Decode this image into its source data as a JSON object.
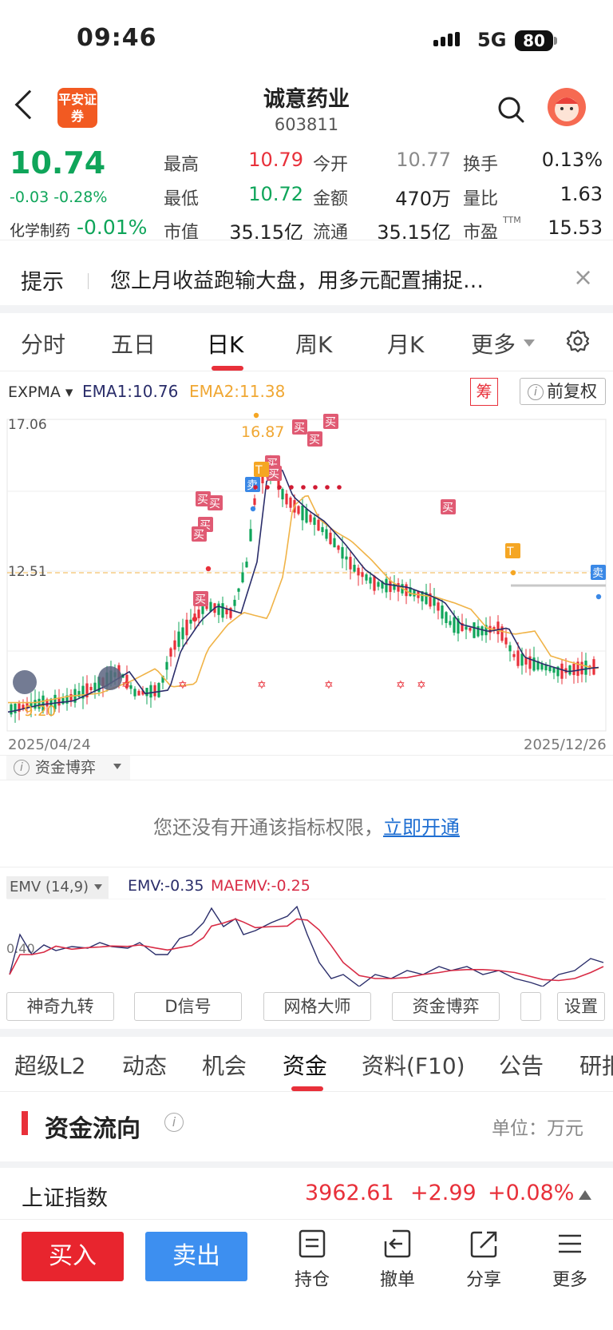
{
  "status_bar": {
    "time": "09:46",
    "network": "5G",
    "battery": "80"
  },
  "header": {
    "logo_text": "平安证券",
    "stock_name": "诚意药业",
    "stock_code": "603811"
  },
  "quote": {
    "price": "10.74",
    "change": "-0.03 -0.28%",
    "sector_name": "化学制药",
    "sector_change": "-0.01%",
    "fields": [
      {
        "label": "最高",
        "value": "10.79",
        "color": "#e8303a"
      },
      {
        "label": "今开",
        "value": "10.77",
        "color": "#8a8a8a"
      },
      {
        "label": "换手",
        "value": "0.13%",
        "color": "#222222"
      },
      {
        "label": "最低",
        "value": "10.72",
        "color": "#0fa55a"
      },
      {
        "label": "金额",
        "value": "470万",
        "color": "#222222"
      },
      {
        "label": "量比",
        "value": "1.63",
        "color": "#222222"
      },
      {
        "label": "市值",
        "value": "35.15亿",
        "color": "#222222"
      },
      {
        "label": "流通",
        "value": "35.15亿",
        "color": "#222222"
      },
      {
        "label": "市盈",
        "value": "15.53",
        "color": "#222222",
        "sup": "TTM"
      }
    ]
  },
  "tip": {
    "label": "提示",
    "text": "您上月收益跑输大盘，用多元配置捕捉…"
  },
  "period_tabs": [
    "分时",
    "五日",
    "日K",
    "周K",
    "月K",
    "更多"
  ],
  "period_active": "日K",
  "indicator": {
    "name": "EXPMA",
    "ema1": "EMA1:10.76",
    "ema2": "EMA2:11.38",
    "chip_badge": "筹",
    "adjust_label": "前复权"
  },
  "kline": {
    "price_high_label": "17.06",
    "mid_label": "12.51",
    "low_label": "9.20",
    "peak_label": "16.87",
    "start_date": "2025/04/24",
    "end_date": "2025/12/26",
    "colors": {
      "up": "#e8303a",
      "down": "#0fa55a",
      "ema1": "#2a2d6a",
      "ema2": "#f0b347"
    },
    "signal_buy": "买",
    "signal_sell": "卖",
    "signal_t": "T"
  },
  "fund_game": {
    "label": "资金博弈",
    "notice": "您还没有开通该指标权限，",
    "link": "立即开通"
  },
  "emv": {
    "label": "EMV (14,9)",
    "emv": "EMV:-0.35",
    "maemv": "MAEMV:-0.25",
    "axis_label": "0.40"
  },
  "tool_buttons": [
    "神奇九转",
    "D信号",
    "网格大师",
    "资金博弈",
    "设置"
  ],
  "section_tabs": [
    "超级L2",
    "动态",
    "机会",
    "资金",
    "资料(F10)",
    "公告",
    "研报"
  ],
  "section_active": "资金",
  "money_flow": {
    "title": "资金流向",
    "unit": "单位：万元"
  },
  "index_row": {
    "name": "上证指数",
    "value": "3962.61",
    "change": "+2.99",
    "pct": "+0.08%"
  },
  "bottom_bar": {
    "buy": "买入",
    "sell": "卖出",
    "nav": [
      "持仓",
      "撤单",
      "分享",
      "更多"
    ]
  }
}
